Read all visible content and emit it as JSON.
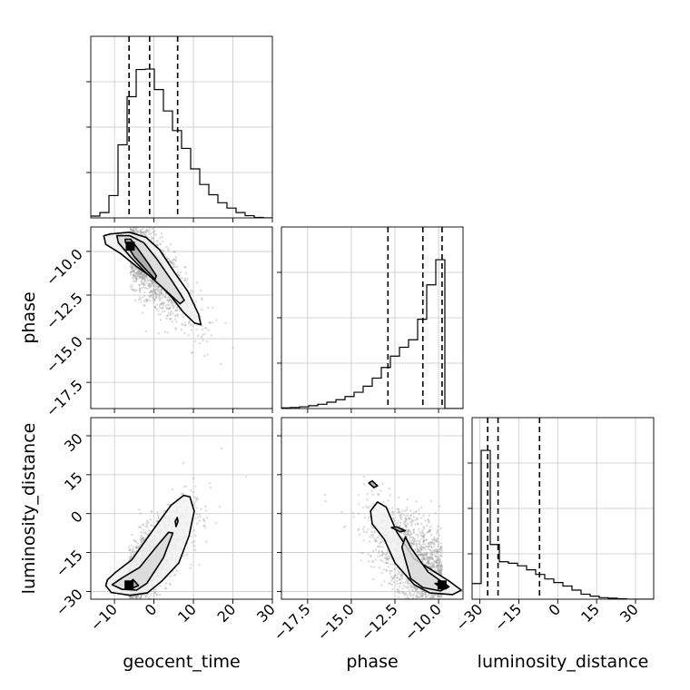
{
  "chart_data": {
    "type": "corner",
    "parameters": [
      "geocent_time",
      "phase",
      "luminosity_distance"
    ],
    "ranges": {
      "geocent_time": [
        -16,
        30
      ],
      "phase": [
        -19,
        -8.6
      ],
      "luminosity_distance": [
        -33,
        37
      ]
    },
    "ticks": {
      "geocent_time": [
        -10,
        0,
        10,
        20,
        30
      ],
      "phase": [
        -17.5,
        -15.0,
        -12.5,
        -10.0
      ],
      "luminosity_distance": [
        -30,
        -15,
        0,
        15,
        30
      ]
    },
    "tick_labels": {
      "geocent_time": [
        "−10",
        "0",
        "10",
        "20",
        "30"
      ],
      "phase": [
        "−17.5",
        "−15.0",
        "−12.5",
        "−10.0"
      ],
      "luminosity_distance": [
        "−30",
        "−15",
        "0",
        "15",
        "30"
      ]
    },
    "xlabels": [
      "geocent_time",
      "phase",
      "luminosity_distance"
    ],
    "ylabels": [
      "",
      "phase",
      "luminosity_distance"
    ],
    "grid": true,
    "histograms": [
      {
        "parameter": "geocent_time",
        "bin_edges": [
          -16,
          -13.7,
          -11.4,
          -9.1,
          -6.8,
          -4.5,
          -2.2,
          0.1,
          2.4,
          4.7,
          7.0,
          9.3,
          11.6,
          13.9,
          16.2,
          18.5,
          20.8,
          23.1,
          25.4,
          27.7,
          30
        ],
        "counts": [
          0.4,
          1.2,
          5.0,
          16.4,
          27.2,
          33.3,
          33.4,
          28.8,
          24.0,
          19.6,
          15.6,
          11.0,
          7.5,
          5.2,
          3.4,
          2.2,
          1.2,
          0.5,
          0.1,
          0
        ],
        "quantiles": [
          -6.3,
          -1.1,
          6.0
        ]
      },
      {
        "parameter": "phase",
        "bin_edges": [
          -19.0,
          -18.48,
          -17.96,
          -17.44,
          -16.92,
          -16.4,
          -15.88,
          -15.36,
          -14.84,
          -14.32,
          -13.8,
          -13.28,
          -12.76,
          -12.24,
          -11.72,
          -11.2,
          -10.68,
          -10.16,
          -9.64,
          -9.12,
          -8.6
        ],
        "counts": [
          0.2,
          0.3,
          0.5,
          0.8,
          1.2,
          1.8,
          2.5,
          3.4,
          4.6,
          6.3,
          8.6,
          11.6,
          14.8,
          17.3,
          19.4,
          25.2,
          34.9,
          42.0,
          0,
          0
        ],
        "quantiles": [
          -12.9,
          -10.9,
          -9.8
        ]
      },
      {
        "parameter": "luminosity_distance",
        "bin_edges": [
          -33,
          -29.5,
          -26.0,
          -22.5,
          -19.0,
          -15.5,
          -12.0,
          -8.5,
          -5.0,
          -1.5,
          2.0,
          5.5,
          9.0,
          12.5,
          16.0,
          19.5,
          23.0,
          26.5,
          30.0,
          33.5,
          37.0
        ],
        "counts": [
          3.1,
          29.4,
          10.8,
          7.4,
          7.1,
          6.6,
          5.8,
          4.9,
          4.0,
          3.3,
          2.6,
          1.8,
          1.0,
          0.6,
          0.3,
          0.2,
          0.1,
          0,
          0,
          0
        ],
        "quantiles": [
          -27.0,
          -23.0,
          -7.0
        ]
      }
    ],
    "scatter_2d": [
      {
        "x": "geocent_time",
        "y": "phase",
        "correlation": -0.85,
        "mode": [
          -6,
          -9.7
        ],
        "x_spread": 6.3,
        "y_spread": 1.7,
        "contours": [
          [
            [
              -12.7,
              -9.1
            ],
            [
              -11.0,
              -9.0
            ],
            [
              -6.2,
              -8.9
            ],
            [
              -2.0,
              -9.2
            ],
            [
              1.4,
              -9.9
            ],
            [
              5.2,
              -11.2
            ],
            [
              8.6,
              -12.3
            ],
            [
              11.3,
              -13.6
            ],
            [
              11.9,
              -14.2
            ],
            [
              10.3,
              -14.1
            ],
            [
              7.5,
              -13.5
            ],
            [
              4.4,
              -12.6
            ],
            [
              0.2,
              -11.6
            ],
            [
              -4.2,
              -10.9
            ],
            [
              -8.6,
              -10.1
            ],
            [
              -12.2,
              -9.6
            ],
            [
              -12.7,
              -9.1
            ]
          ],
          [
            [
              -9.4,
              -9.1
            ],
            [
              -6.1,
              -9.1
            ],
            [
              -2.6,
              -9.5
            ],
            [
              0.6,
              -10.4
            ],
            [
              4.3,
              -11.6
            ],
            [
              6.6,
              -12.4
            ],
            [
              7.7,
              -12.8
            ],
            [
              6.6,
              -13.0
            ],
            [
              2.3,
              -12.1
            ],
            [
              -2.1,
              -11.2
            ],
            [
              -6.0,
              -10.3
            ],
            [
              -9.0,
              -9.5
            ],
            [
              -9.4,
              -9.1
            ]
          ],
          [
            [
              -7.3,
              -9.3
            ],
            [
              -5.9,
              -9.3
            ],
            [
              -3.9,
              -9.9
            ],
            [
              -1.4,
              -10.7
            ],
            [
              0.6,
              -11.4
            ],
            [
              0.3,
              -11.6
            ],
            [
              -2.2,
              -11.0
            ],
            [
              -5.0,
              -10.3
            ],
            [
              -7.2,
              -9.5
            ],
            [
              -7.3,
              -9.3
            ]
          ]
        ]
      },
      {
        "x": "geocent_time",
        "y": "luminosity_distance",
        "correlation": 0.85,
        "mode": [
          -6.3,
          -27.5
        ],
        "x_spread": 6.3,
        "y_spread": 12.0,
        "contours": [
          [
            [
              -12.2,
              -27.8
            ],
            [
              -10.8,
              -30.4
            ],
            [
              -6.0,
              -31.5
            ],
            [
              -1.6,
              -30.5
            ],
            [
              2.0,
              -26.0
            ],
            [
              6.3,
              -19.0
            ],
            [
              8.9,
              -8.5
            ],
            [
              10.2,
              1.0
            ],
            [
              9.1,
              6.5
            ],
            [
              7.5,
              7.0
            ],
            [
              4.3,
              3.2
            ],
            [
              0.4,
              -5.0
            ],
            [
              -5.6,
              -17.8
            ],
            [
              -9.7,
              -22.6
            ],
            [
              -11.8,
              -25.5
            ],
            [
              -12.2,
              -27.8
            ]
          ],
          [
            [
              -10.6,
              -27.4
            ],
            [
              -8.1,
              -29.2
            ],
            [
              -4.4,
              -29.5
            ],
            [
              -1.8,
              -26.9
            ],
            [
              2.4,
              -17.0
            ],
            [
              4.8,
              -7.5
            ],
            [
              3.7,
              -7.2
            ],
            [
              0.5,
              -13.0
            ],
            [
              -3.6,
              -20.7
            ],
            [
              -8.0,
              -24.7
            ],
            [
              -10.6,
              -27.4
            ]
          ],
          [
            [
              -6.9,
              -27.6
            ],
            [
              -5.2,
              -28.6
            ],
            [
              -3.9,
              -27.7
            ],
            [
              -5.3,
              -25.4
            ],
            [
              -6.9,
              -27.6
            ]
          ],
          [
            [
              5.6,
              -5.0
            ],
            [
              6.1,
              -3.0
            ],
            [
              5.9,
              -1.5
            ],
            [
              5.4,
              -3.0
            ],
            [
              5.6,
              -5.0
            ]
          ]
        ]
      },
      {
        "x": "phase",
        "y": "luminosity_distance",
        "correlation": -0.75,
        "mode": [
          -9.8,
          -27.5
        ],
        "x_spread": 1.7,
        "y_spread": 12.0,
        "contours": [
          [
            [
              -12.5,
              -19.0
            ],
            [
              -11.4,
              -27.4
            ],
            [
              -10.5,
              -30.6
            ],
            [
              -9.2,
              -31.2
            ],
            [
              -8.7,
              -29.5
            ],
            [
              -9.4,
              -26.0
            ],
            [
              -11.4,
              -17.5
            ],
            [
              -12.4,
              -7.0
            ],
            [
              -13.0,
              2.5
            ],
            [
              -13.5,
              4.5
            ],
            [
              -13.9,
              1.0
            ],
            [
              -13.8,
              -4.0
            ],
            [
              -13.1,
              -10.0
            ],
            [
              -12.5,
              -19.0
            ]
          ],
          [
            [
              -11.6,
              -25.0
            ],
            [
              -10.9,
              -28.5
            ],
            [
              -9.9,
              -29.8
            ],
            [
              -9.4,
              -28.2
            ],
            [
              -10.6,
              -22.5
            ],
            [
              -11.6,
              -13.0
            ],
            [
              -11.9,
              -9.0
            ],
            [
              -12.1,
              -13.0
            ],
            [
              -11.6,
              -25.0
            ]
          ],
          [
            [
              -10.2,
              -26.9
            ],
            [
              -9.9,
              -28.4
            ],
            [
              -9.5,
              -28.7
            ],
            [
              -9.6,
              -27.0
            ],
            [
              -10.2,
              -26.9
            ]
          ],
          [
            [
              -12.7,
              -5.4
            ],
            [
              -12.2,
              -7.0
            ],
            [
              -11.9,
              -6.6
            ],
            [
              -12.4,
              -5.1
            ],
            [
              -12.7,
              -5.4
            ]
          ],
          [
            [
              -14.0,
              11.8
            ],
            [
              -13.7,
              10.0
            ],
            [
              -13.5,
              10.7
            ],
            [
              -13.8,
              12.6
            ],
            [
              -14.0,
              11.8
            ]
          ]
        ]
      }
    ]
  }
}
